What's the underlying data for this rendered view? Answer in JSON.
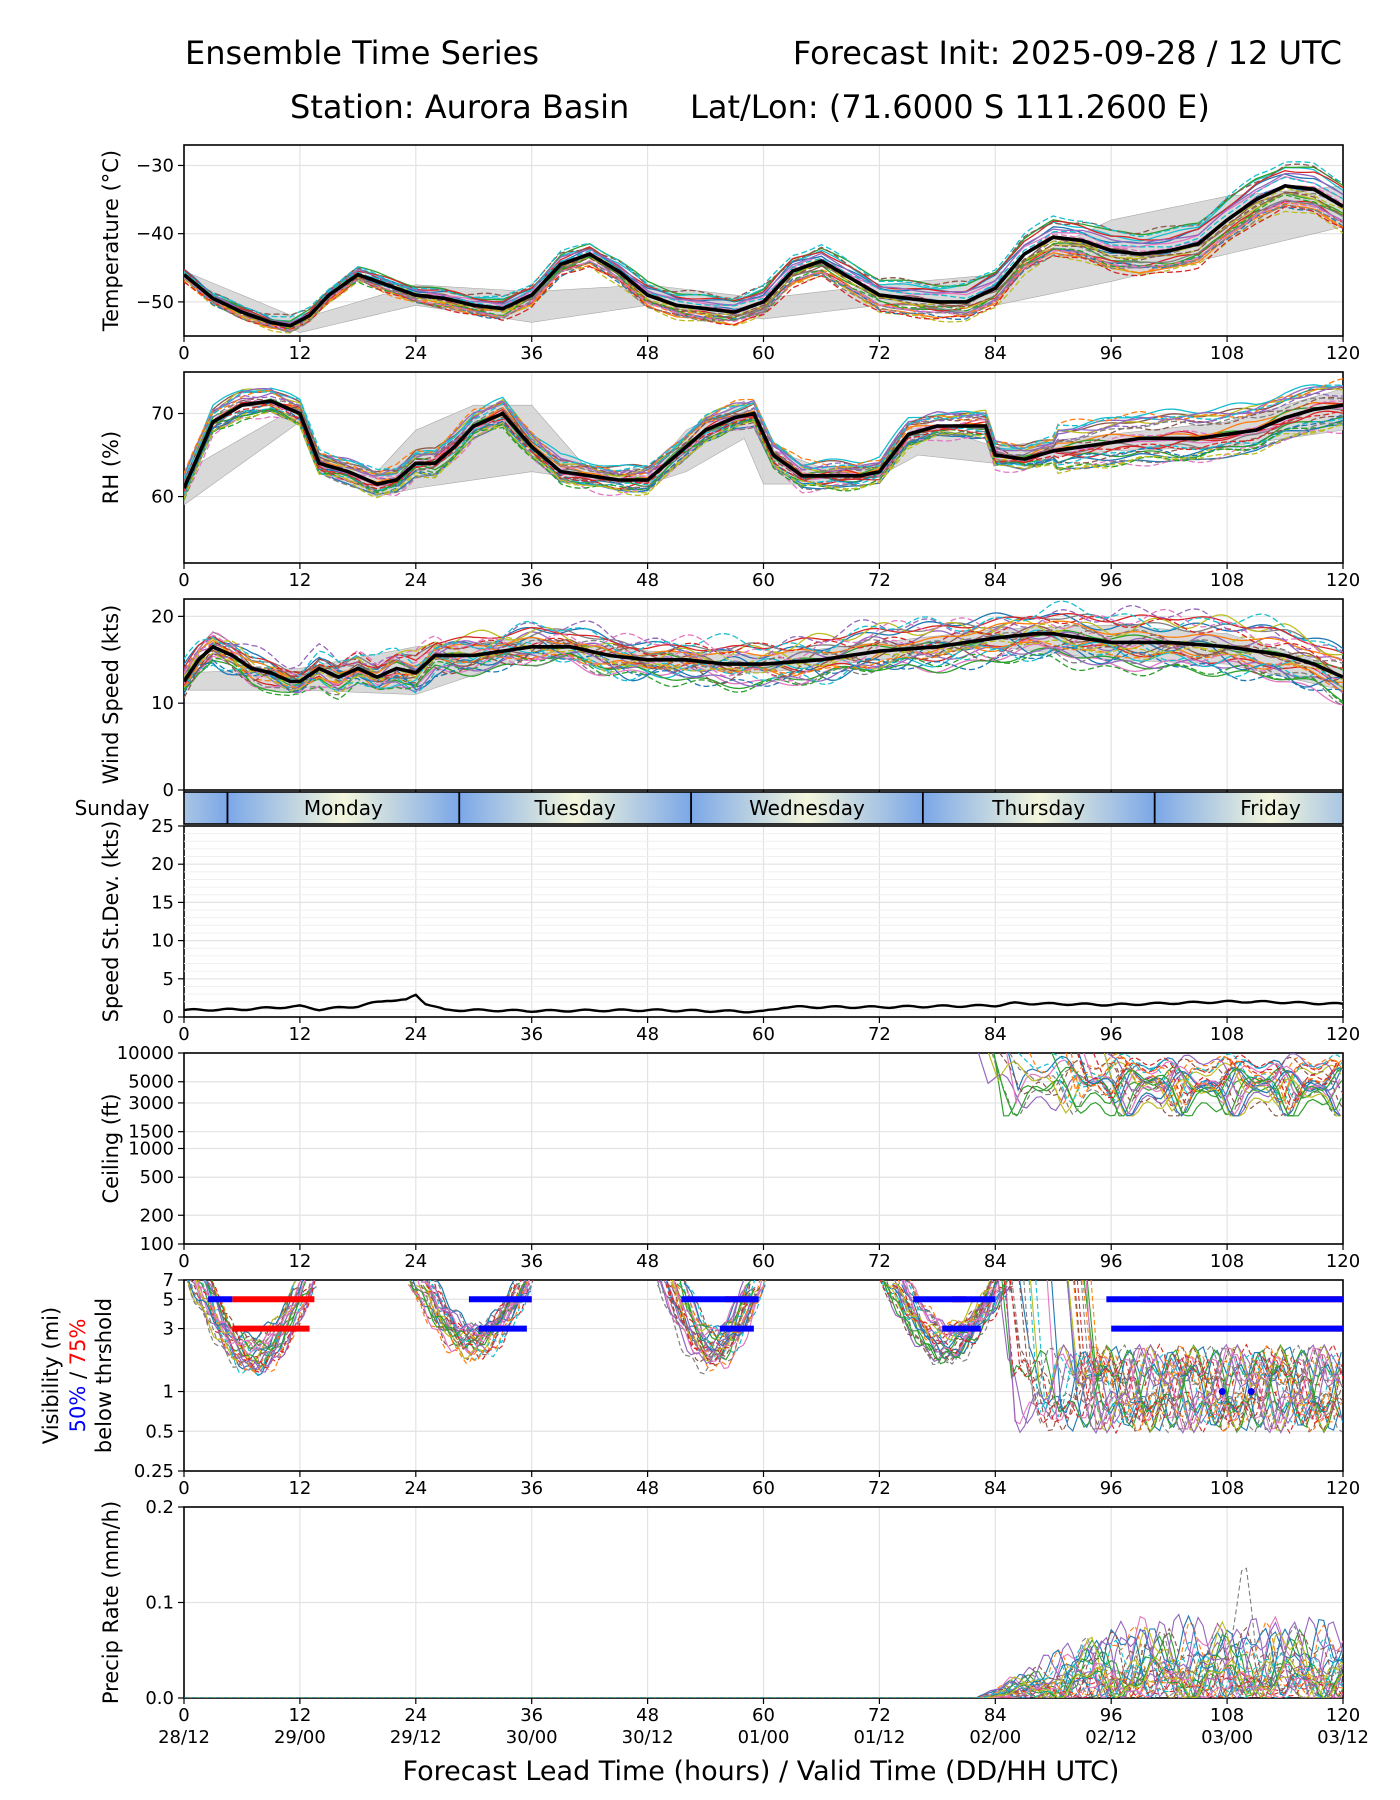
{
  "header": {
    "title_left": "Ensemble Time Series",
    "title_right": "Forecast Init: 2025-09-28 / 12 UTC",
    "station": "Station: Aurora Basin",
    "latlon": "Lat/Lon: (71.6000 S 111.2600 E)"
  },
  "xaxis": {
    "label": "Forecast Lead Time (hours) / Valid Time (DD/HH UTC)",
    "lead_ticks": [
      0,
      12,
      24,
      36,
      48,
      60,
      72,
      84,
      96,
      108,
      120
    ],
    "valid_ticks": [
      "28/12",
      "29/00",
      "29/12",
      "30/00",
      "30/12",
      "01/00",
      "01/12",
      "02/00",
      "02/12",
      "03/00",
      "03/12"
    ]
  },
  "days": {
    "labels": [
      "Sunday",
      "Monday",
      "Tuesday",
      "Wednesday",
      "Thursday",
      "Friday"
    ],
    "boundaries": [
      4.5,
      28.5,
      52.5,
      76.5,
      100.5
    ],
    "label_hours": [
      -8,
      16.5,
      40.5,
      64.5,
      88.5,
      112.5
    ]
  },
  "colors": {
    "mean": "#000000",
    "spread": "#d3d3d3",
    "p50": "#0000ff",
    "p75": "#ff0000",
    "members": [
      "#1f77b4",
      "#ff7f0e",
      "#2ca02c",
      "#d62728",
      "#9467bd",
      "#8c564b",
      "#e377c2",
      "#7f7f7f",
      "#bcbd22",
      "#17becf"
    ]
  },
  "chart_data": [
    {
      "type": "line",
      "id": "temp",
      "ylabel": "Temperature (°C)",
      "ylim": [
        -55,
        -27
      ],
      "yticks": [
        -30,
        -40,
        -50
      ],
      "ensemble_mean": {
        "x": [
          0,
          3,
          6,
          9,
          11,
          13,
          15,
          18,
          21,
          24,
          27,
          30,
          33,
          36,
          39,
          42,
          45,
          48,
          51,
          54,
          57,
          60,
          63,
          66,
          69,
          72,
          75,
          78,
          81,
          84,
          87,
          90,
          93,
          96,
          99,
          102,
          105,
          108,
          111,
          114,
          117,
          120
        ],
        "y": [
          -46,
          -49.5,
          -51.5,
          -53,
          -53.5,
          -52,
          -49,
          -46,
          -47.5,
          -49,
          -49.5,
          -50.5,
          -51,
          -49,
          -44.5,
          -43,
          -45.5,
          -49,
          -50.5,
          -51,
          -51.5,
          -50,
          -45.5,
          -44,
          -46.5,
          -49,
          -49.5,
          -50,
          -50,
          -48,
          -43,
          -40.5,
          -41,
          -42.5,
          -43,
          -42.5,
          -41.5,
          -38,
          -35,
          -33,
          -33.5,
          -36
        ]
      },
      "spread": {
        "x": [
          0,
          12,
          24,
          36,
          48,
          60,
          72,
          84,
          96,
          108,
          120
        ],
        "lower": [
          -46.5,
          -54.5,
          -50.5,
          -53,
          -50.5,
          -52.5,
          -50.5,
          -50.5,
          -47,
          -43,
          -39
        ],
        "upper": [
          -45.5,
          -52.5,
          -47.5,
          -48.5,
          -47.5,
          -49.5,
          -47.5,
          -46,
          -38,
          -34.5,
          -33
        ]
      }
    },
    {
      "type": "line",
      "id": "rh",
      "ylabel": "RH (%)",
      "ylim": [
        52,
        75
      ],
      "yticks": [
        70,
        60
      ],
      "ensemble_mean": {
        "x": [
          0,
          3,
          6,
          9,
          12,
          14,
          17,
          20,
          22,
          24,
          26,
          28,
          30,
          33,
          36,
          39,
          42,
          45,
          48,
          51,
          54,
          57,
          59,
          61,
          64,
          67,
          70,
          72,
          75,
          78,
          81,
          83,
          84,
          87,
          90,
          93,
          96,
          99,
          102,
          105,
          108,
          111,
          114,
          117,
          120
        ],
        "y": [
          61,
          69,
          71,
          71.5,
          70,
          64,
          63,
          61.5,
          62,
          64,
          64,
          66,
          68.5,
          70,
          66,
          63,
          62.5,
          62,
          62,
          65,
          68,
          69.5,
          70,
          65,
          62.5,
          62.5,
          62.5,
          63,
          67.5,
          68.5,
          68.5,
          68.5,
          65,
          64.5,
          65.5,
          66,
          66.5,
          67,
          67,
          67,
          67.5,
          68,
          69.5,
          70.5,
          71
        ]
      },
      "spread": {
        "x": [
          0,
          12,
          14,
          20,
          24,
          30,
          36,
          42,
          48,
          52,
          58,
          60,
          66,
          72,
          76,
          84,
          96,
          108,
          120
        ],
        "lower": [
          59,
          69,
          63,
          60,
          61,
          62,
          63,
          62,
          61.5,
          63,
          67,
          61.5,
          61.5,
          62.5,
          65,
          64,
          65.5,
          66,
          68
        ],
        "upper": [
          63,
          71,
          65,
          63,
          68,
          71,
          71,
          63,
          62.5,
          68,
          71.5,
          66,
          63.5,
          64,
          69,
          66,
          67.5,
          69,
          73
        ]
      }
    },
    {
      "type": "line",
      "id": "wind",
      "ylabel": "Wind Speed (kts)",
      "ylim": [
        0,
        22
      ],
      "yticks": [
        20,
        10,
        0
      ],
      "ensemble_mean": {
        "x": [
          0,
          1.5,
          3,
          5,
          7,
          9,
          11,
          12,
          14,
          16,
          18,
          20,
          22,
          24,
          26,
          28,
          30,
          33,
          36,
          40,
          44,
          48,
          52,
          56,
          60,
          66,
          72,
          78,
          84,
          88,
          90,
          96,
          102,
          108,
          114,
          117,
          120
        ],
        "y": [
          12.5,
          15,
          16.5,
          15.5,
          14,
          13.5,
          12.5,
          12.5,
          14,
          13,
          14,
          13,
          14,
          13.5,
          15.5,
          15.5,
          15.5,
          16,
          16.5,
          16.5,
          15.5,
          15,
          15,
          14.5,
          14.5,
          15,
          16,
          16.5,
          17.5,
          18,
          18,
          17,
          17,
          16.5,
          15.5,
          14.5,
          13
        ]
      },
      "spread": {
        "x": [
          0,
          12,
          24,
          36,
          48,
          60,
          72,
          84,
          96,
          108,
          120
        ],
        "lower": [
          11.5,
          11.5,
          11,
          15.5,
          14,
          13.5,
          15,
          16.5,
          15,
          14.5,
          11.5
        ],
        "upper": [
          13.5,
          14,
          16.5,
          17.5,
          16,
          15.5,
          17,
          18.5,
          19,
          18,
          14
        ]
      }
    },
    {
      "type": "line",
      "id": "sd",
      "ylabel": "Speed St.Dev. (kts)",
      "ylim": [
        0,
        25
      ],
      "yticks": [
        25,
        20,
        15,
        10,
        5,
        0
      ],
      "series": [
        {
          "name": "St.Dev.",
          "x": [
            0,
            6,
            12,
            14,
            18,
            21,
            23,
            24,
            25,
            27,
            30,
            36,
            48,
            60,
            62,
            66,
            72,
            84,
            86,
            96,
            108,
            111,
            120
          ],
          "y": [
            0.9,
            1.0,
            1.4,
            1.0,
            1.4,
            2.2,
            2.2,
            2.9,
            1.8,
            0.9,
            0.9,
            0.8,
            0.9,
            0.7,
            1.3,
            1.3,
            1.3,
            1.5,
            1.8,
            1.6,
            2.0,
            2.0,
            1.7
          ]
        }
      ]
    },
    {
      "type": "line",
      "id": "ceil",
      "ylabel": "Ceiling (ft)",
      "yscale": "log",
      "ylim": [
        100,
        10000
      ],
      "yticks": [
        10000,
        5000,
        3000,
        1500,
        1000,
        500,
        200,
        100
      ],
      "note": "ensemble members only present from ~84 h onward, mostly 3000–10000 ft"
    },
    {
      "type": "line",
      "id": "vis",
      "ylabel_parts": [
        "Visibility (mi)",
        "50%",
        " / ",
        "75%",
        "below thrshold"
      ],
      "yscale": "log",
      "ylim": [
        0.25,
        7
      ],
      "yticks": [
        7,
        5,
        3,
        1,
        0.5,
        0.25
      ],
      "p50_segments": [
        [
          2.5,
          5
        ],
        [
          29.5,
          36
        ],
        [
          51.5,
          59.5
        ],
        [
          75.5,
          84
        ],
        [
          95.5,
          120
        ]
      ],
      "p50_segments_3mi": [
        [
          30.5,
          35.5
        ],
        [
          55.5,
          59
        ],
        [
          78.5,
          82.5
        ],
        [
          96,
          120
        ]
      ],
      "p75_segments_5mi": [
        [
          5,
          13.5
        ],
        [
          35.5,
          36
        ],
        [
          56,
          59
        ],
        [
          79.5,
          81
        ],
        [
          99,
          120
        ]
      ],
      "p75_segments_3mi": [
        [
          5,
          13
        ],
        [
          100,
          120
        ]
      ],
      "p50_dots_1mi": [
        107.5,
        110.5
      ]
    },
    {
      "type": "line",
      "id": "precip",
      "ylabel": "Precip Rate (mm/h)",
      "ylim": [
        0,
        0.2
      ],
      "yticks": [
        0.2,
        0.1,
        0.0
      ],
      "note": "rates ~0 until ~84 h; members up to 0.14 mm/h near 110 h"
    }
  ]
}
